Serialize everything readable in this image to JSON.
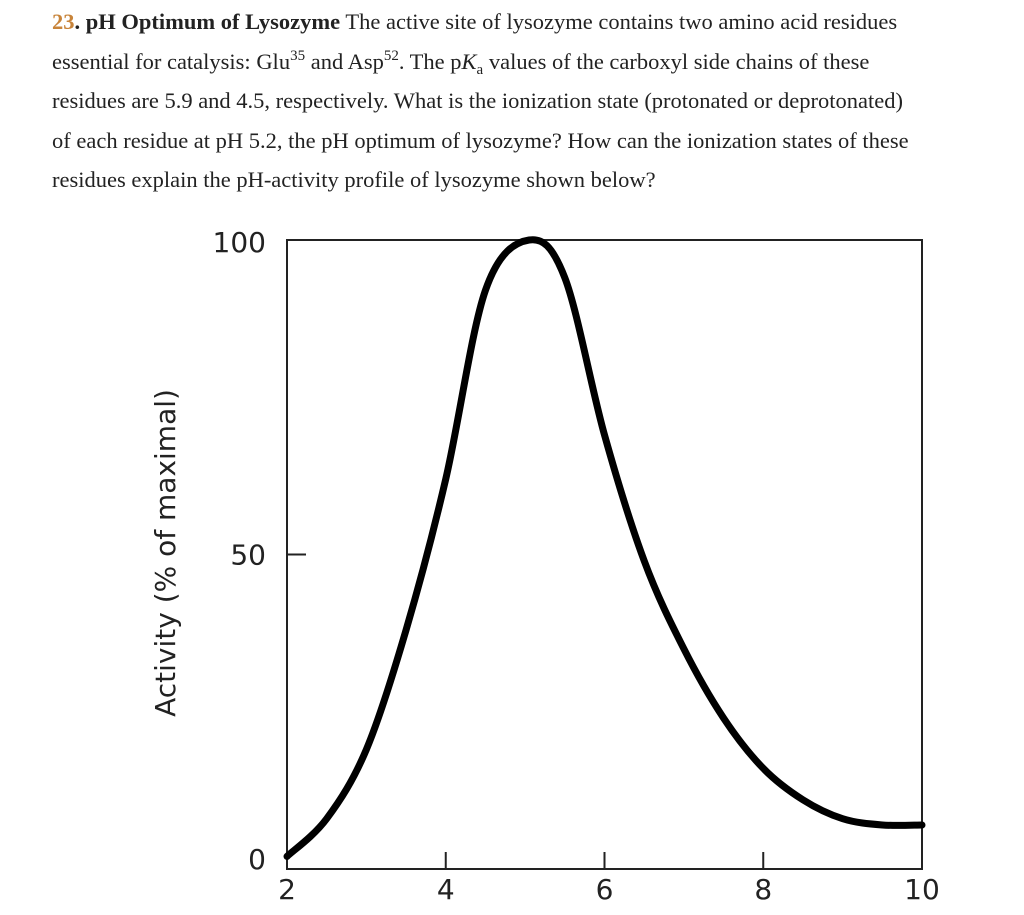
{
  "question": {
    "number": "23",
    "title": "pH Optimum of Lysozyme",
    "line1_rest": " The active site of lysozyme contains two amino acid residues",
    "line2_a": "essential for catalysis: Glu",
    "line2_sup1": "35",
    "line2_b": " and Asp",
    "line2_sup2": "52",
    "line2_c": ". The p",
    "line2_K": "K",
    "line2_sub": "a",
    "line2_d": " values of the carboxyl side chains of these",
    "line3": "residues are 5.9 and 4.5, respectively. What is the ionization state (protonated or deprotonated)",
    "line4": "of each residue at pH 5.2, the pH optimum of lysozyme? How can the ionization states of these",
    "line5": "residues explain the pH-activity profile of lysozyme shown below?"
  },
  "colors": {
    "number": "#c8843a",
    "curve": "#000000"
  },
  "chart_data": {
    "type": "line",
    "title": "",
    "xlabel": "",
    "ylabel": "Activity (% of maximal)",
    "xlim": [
      2,
      10
    ],
    "ylim": [
      0,
      100
    ],
    "x_ticks": [
      "2",
      "4",
      "6",
      "8",
      "10"
    ],
    "y_ticks": [
      "0",
      "50",
      "100"
    ],
    "grid": false,
    "series": [
      {
        "x": [
          2,
          2.5,
          3,
          3.5,
          4,
          4.5,
          5.05,
          5.5,
          6,
          6.5,
          7,
          7.5,
          8,
          8.5,
          9,
          9.5,
          10
        ],
        "y": [
          2,
          8,
          19,
          38,
          62,
          92,
          100,
          94,
          69,
          49,
          35,
          24,
          16,
          11,
          8,
          7,
          7
        ]
      }
    ]
  }
}
